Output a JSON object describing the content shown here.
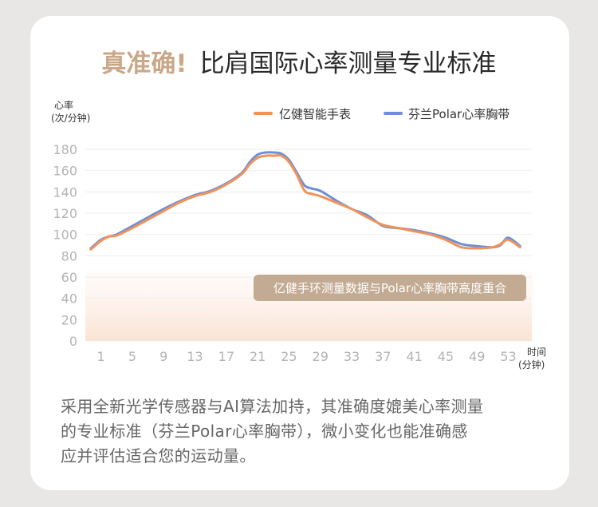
{
  "title": {
    "accent": "真准确!",
    "main": "比肩国际心率测量专业标准"
  },
  "chart_data": {
    "type": "line",
    "ylabel_line1": "心率",
    "ylabel_line2": "(次/分钟)",
    "xlabel_line1": "时间",
    "xlabel_line2": "(分钟)",
    "ylim": [
      0,
      180
    ],
    "yticks": [
      0,
      20,
      40,
      60,
      80,
      100,
      120,
      140,
      160,
      180
    ],
    "xticks": [
      1,
      5,
      9,
      13,
      17,
      21,
      25,
      29,
      33,
      37,
      41,
      45,
      49,
      53
    ],
    "xlim": [
      -1,
      56
    ],
    "grid": true,
    "legend_position": "top-right",
    "annotation": "亿健手环测量数据与Polar心率胸带高度重合",
    "series": [
      {
        "name": "亿健智能手表",
        "color": "#f0935b",
        "x": [
          -0.3,
          1,
          2,
          3,
          5,
          7,
          9,
          11,
          13,
          15,
          17,
          19,
          20,
          21,
          22,
          23,
          24,
          25,
          26,
          27,
          28,
          29,
          31,
          33,
          35,
          37,
          39,
          41,
          43,
          45,
          47,
          49,
          51,
          52,
          53,
          54.5
        ],
        "values": [
          86,
          94,
          98,
          99,
          106,
          114,
          122,
          130,
          136,
          140,
          147,
          157,
          166,
          172,
          174,
          174,
          174,
          168,
          156,
          141,
          138,
          136,
          130,
          124,
          116,
          109,
          106,
          103,
          100,
          95,
          88,
          87,
          88,
          91,
          95,
          88
        ]
      },
      {
        "name": "芬兰Polar心率胸带",
        "color": "#6e8fd8",
        "x": [
          -0.3,
          1,
          2,
          3,
          5,
          7,
          9,
          11,
          13,
          15,
          17,
          19,
          20,
          21,
          22,
          23,
          24,
          25,
          26,
          27,
          28,
          29,
          31,
          33,
          35,
          37,
          39,
          41,
          43,
          45,
          47,
          49,
          51,
          52,
          53,
          54.5
        ],
        "values": [
          87,
          95,
          98,
          100,
          108,
          116,
          124,
          131,
          137,
          141,
          148,
          158,
          168,
          175,
          177,
          177,
          176,
          170,
          158,
          146,
          143,
          141,
          132,
          124,
          118,
          108,
          106,
          104,
          101,
          97,
          91,
          89,
          88,
          90,
          97,
          89
        ]
      }
    ]
  },
  "description": [
    "采用全新光学传感器与AI算法加持，其准确度媲美心率测量",
    "的专业标准（芬兰Polar心率胸带），微小变化也能准确感",
    "应并评估适合您的运动量。"
  ]
}
